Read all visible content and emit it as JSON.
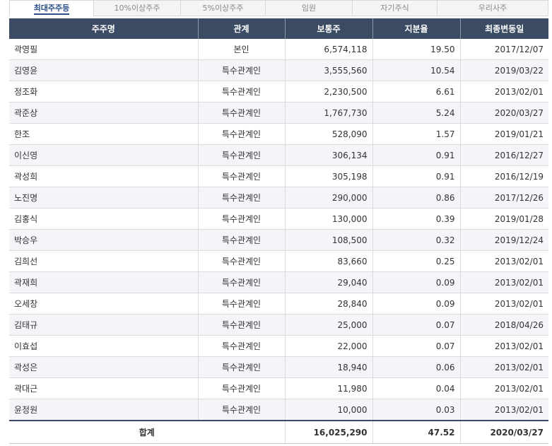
{
  "tabs": [
    "최대주주등",
    "10%이상주주",
    "5%이상주주",
    "임원",
    "자기주식",
    "우리사주"
  ],
  "columns": [
    "주주명",
    "관계",
    "보통주",
    "지분율",
    "최종변동일"
  ],
  "rows": [
    {
      "name": "곽영필",
      "relation": "본인",
      "shares": "6,574,118",
      "ratio": "19.50",
      "date": "2017/12/07"
    },
    {
      "name": "김영윤",
      "relation": "특수관계인",
      "shares": "3,555,560",
      "ratio": "10.54",
      "date": "2019/03/22"
    },
    {
      "name": "정조화",
      "relation": "특수관계인",
      "shares": "2,230,500",
      "ratio": "6.61",
      "date": "2013/02/01"
    },
    {
      "name": "곽준상",
      "relation": "특수관계인",
      "shares": "1,767,730",
      "ratio": "5.24",
      "date": "2020/03/27"
    },
    {
      "name": "한조",
      "relation": "특수관계인",
      "shares": "528,090",
      "ratio": "1.57",
      "date": "2019/01/21"
    },
    {
      "name": "이신영",
      "relation": "특수관계인",
      "shares": "306,134",
      "ratio": "0.91",
      "date": "2016/12/27"
    },
    {
      "name": "곽성희",
      "relation": "특수관계인",
      "shares": "305,198",
      "ratio": "0.91",
      "date": "2016/12/19"
    },
    {
      "name": "노진명",
      "relation": "특수관계인",
      "shares": "290,000",
      "ratio": "0.86",
      "date": "2017/12/26"
    },
    {
      "name": "김홍식",
      "relation": "특수관계인",
      "shares": "130,000",
      "ratio": "0.39",
      "date": "2019/01/28"
    },
    {
      "name": "박승우",
      "relation": "특수관계인",
      "shares": "108,500",
      "ratio": "0.32",
      "date": "2019/12/24"
    },
    {
      "name": "김희선",
      "relation": "특수관계인",
      "shares": "83,660",
      "ratio": "0.25",
      "date": "2013/02/01"
    },
    {
      "name": "곽재희",
      "relation": "특수관계인",
      "shares": "29,040",
      "ratio": "0.09",
      "date": "2013/02/01"
    },
    {
      "name": "오세창",
      "relation": "특수관계인",
      "shares": "28,840",
      "ratio": "0.09",
      "date": "2013/02/01"
    },
    {
      "name": "김태규",
      "relation": "특수관계인",
      "shares": "25,000",
      "ratio": "0.07",
      "date": "2018/04/26"
    },
    {
      "name": "이효섭",
      "relation": "특수관계인",
      "shares": "22,000",
      "ratio": "0.07",
      "date": "2013/02/01"
    },
    {
      "name": "곽성은",
      "relation": "특수관계인",
      "shares": "18,940",
      "ratio": "0.06",
      "date": "2013/02/01"
    },
    {
      "name": "곽대근",
      "relation": "특수관계인",
      "shares": "11,980",
      "ratio": "0.04",
      "date": "2013/02/01"
    },
    {
      "name": "윤정원",
      "relation": "특수관계인",
      "shares": "10,000",
      "ratio": "0.03",
      "date": "2013/02/01"
    }
  ],
  "total": {
    "label": "합계",
    "shares": "16,025,290",
    "ratio": "47.52",
    "date": "2020/03/27"
  }
}
